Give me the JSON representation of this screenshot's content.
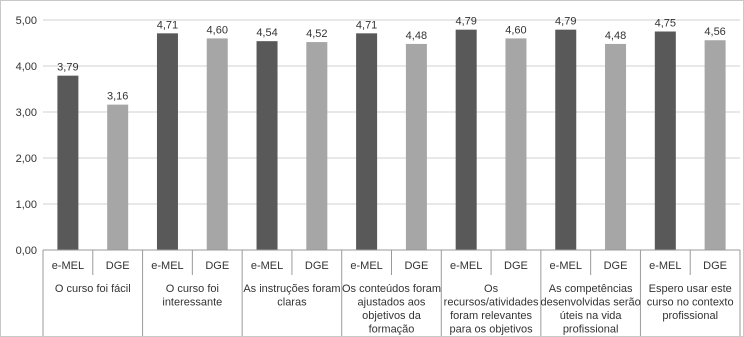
{
  "chart_data": {
    "type": "bar",
    "series_labels": [
      "e-MEL",
      "DGE"
    ],
    "colors": [
      "#595959",
      "#a6a6a6"
    ],
    "categories": [
      [
        "O curso foi fácil"
      ],
      [
        "O curso foi",
        "interessante"
      ],
      [
        "As instruções foram",
        "claras"
      ],
      [
        "Os conteúdos foram",
        "ajustados aos",
        "objetivos da",
        "formação"
      ],
      [
        "Os",
        "recursos/atividades",
        "foram relevantes",
        "para os objetivos"
      ],
      [
        "As competências",
        "desenvolvidas serão",
        "úteis na vida",
        "profissional"
      ],
      [
        "Espero usar este",
        "curso no contexto",
        "profissional"
      ]
    ],
    "series": [
      {
        "name": "e-MEL",
        "values": [
          3.79,
          4.71,
          4.54,
          4.71,
          4.79,
          4.79,
          4.75
        ]
      },
      {
        "name": "DGE",
        "values": [
          3.16,
          4.6,
          4.52,
          4.48,
          4.6,
          4.48,
          4.56
        ]
      }
    ],
    "data_labels": [
      [
        "3,79",
        "4,71",
        "4,54",
        "4,71",
        "4,79",
        "4,79",
        "4,75"
      ],
      [
        "3,16",
        "4,60",
        "4,52",
        "4,48",
        "4,60",
        "4,48",
        "4,56"
      ]
    ],
    "ylim": [
      0,
      5
    ],
    "yticks": [
      "0,00",
      "1,00",
      "2,00",
      "3,00",
      "4,00",
      "5,00"
    ],
    "grid": true,
    "title": "",
    "xlabel": "",
    "ylabel": ""
  }
}
